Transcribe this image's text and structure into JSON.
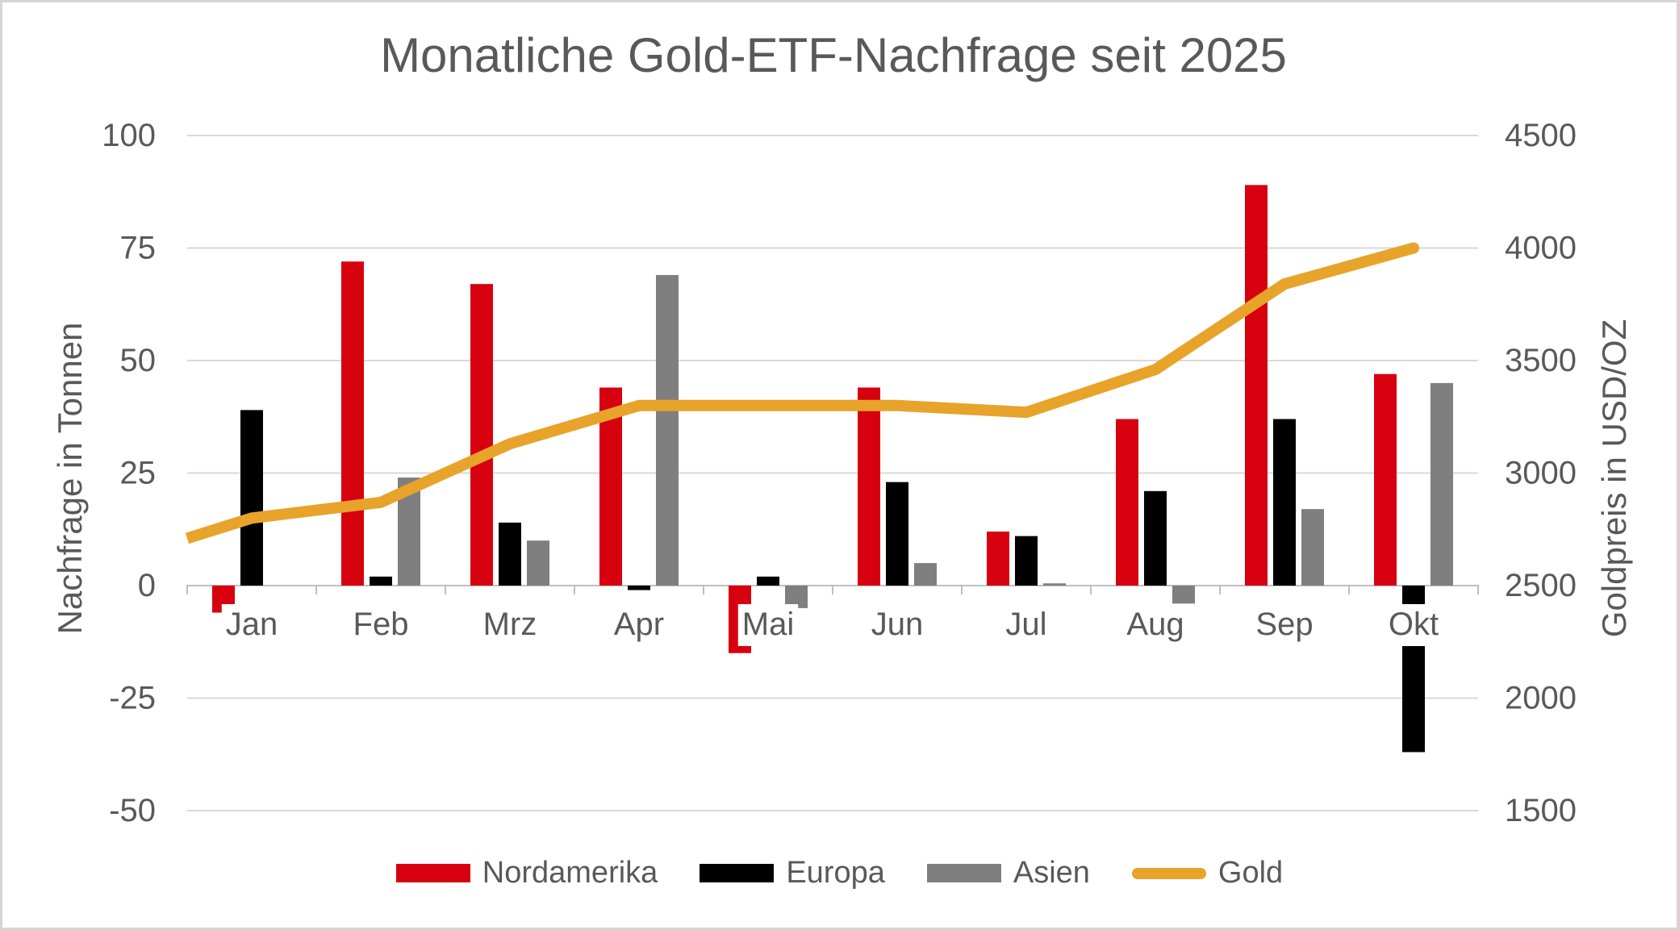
{
  "chart_data": {
    "type": "bar+line combo",
    "title": "Monatliche Gold-ETF-Nachfrage seit 2025",
    "ylabel_left": "Nachfrage in Tonnen",
    "ylabel_right": "Goldpreis in USD/OZ",
    "categories": [
      "Jan",
      "Feb",
      "Mrz",
      "Apr",
      "Mai",
      "Jun",
      "Jul",
      "Aug",
      "Sep",
      "Okt"
    ],
    "bar_series": [
      {
        "name": "Nordamerika",
        "color": "#d7000f",
        "values": [
          -6,
          72,
          67,
          44,
          -15,
          44,
          12,
          37,
          89,
          47
        ]
      },
      {
        "name": "Europa",
        "color": "#000000",
        "values": [
          39,
          2,
          14,
          -1,
          2,
          23,
          11,
          21,
          37,
          -37
        ]
      },
      {
        "name": "Asien",
        "color": "#7f7f7f",
        "values": [
          0,
          24,
          10,
          69,
          -5,
          5,
          0.5,
          -4,
          17,
          45
        ]
      }
    ],
    "line_series": {
      "name": "Gold",
      "color": "#e7a32a",
      "axis": "right",
      "values": [
        2800,
        2870,
        3130,
        3300,
        3300,
        3300,
        3270,
        3460,
        3840,
        4000
      ],
      "edge_start_value": 2710
    },
    "left_ticks": [
      100,
      75,
      50,
      25,
      0,
      -25,
      -50
    ],
    "right_ticks": [
      4500,
      4000,
      3500,
      3000,
      2500,
      2000,
      1500
    ],
    "ylim_left": [
      -50,
      100
    ],
    "ylim_right": [
      1500,
      4500
    ],
    "grid": true,
    "legend_position": "bottom",
    "colors": {
      "text": "#595959",
      "gridline": "#d9d9d9",
      "axis": "#bfbfbf",
      "background": "#ffffff",
      "frame_border": "#d5d5d5"
    }
  }
}
